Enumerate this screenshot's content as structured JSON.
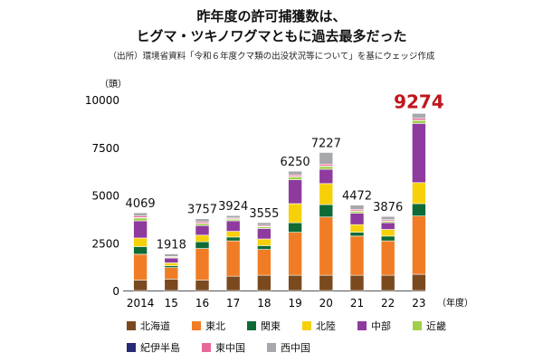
{
  "title_line1": "昨年度の許可捕獲数は、",
  "title_line2": "ヒグマ・ツキノワグマともに過去最多だった",
  "source": "（出所）環境省資料「令和６年度クマ類の出没状況等について」を基にウェッジ作成",
  "chart_data": {
    "type": "bar",
    "stacked": true,
    "title": "昨年度の許可捕獲数は、ヒグマ・ツキノワグマともに過去最多だった",
    "ylabel": "（頭）",
    "xlabel": "（年度）",
    "ylim": [
      0,
      10000
    ],
    "yticks": [
      "0",
      "2500",
      "5000",
      "7500",
      "10000"
    ],
    "categories": [
      "2014",
      "15",
      "16",
      "17",
      "18",
      "19",
      "20",
      "21",
      "22",
      "23"
    ],
    "totals": [
      4069,
      1918,
      3757,
      3924,
      3555,
      6250,
      7227,
      4472,
      3876,
      9274
    ],
    "total_labels": [
      "4069",
      "1918",
      "3757",
      "3924",
      "3555",
      "6250",
      "7227",
      "4472",
      "3876",
      "9274"
    ],
    "highlight_index": 9,
    "highlight_color": "#c0161e",
    "series": [
      {
        "name": "北海道",
        "color": "#7a4a1e",
        "values": [
          550,
          600,
          550,
          750,
          800,
          800,
          800,
          800,
          800,
          850
        ]
      },
      {
        "name": "東北",
        "color": "#f07d25",
        "values": [
          1350,
          600,
          1650,
          1850,
          1350,
          2250,
          3050,
          2050,
          1800,
          3050
        ]
      },
      {
        "name": "関東",
        "color": "#0f6b35",
        "values": [
          400,
          100,
          350,
          200,
          200,
          500,
          650,
          200,
          250,
          650
        ]
      },
      {
        "name": "北陸",
        "color": "#f6d10a",
        "values": [
          450,
          150,
          350,
          300,
          350,
          1000,
          1100,
          400,
          350,
          1100
        ]
      },
      {
        "name": "中部",
        "color": "#8e3a9f",
        "values": [
          900,
          250,
          500,
          550,
          550,
          1250,
          750,
          600,
          350,
          3100
        ]
      },
      {
        "name": "近畿",
        "color": "#9fd048",
        "values": [
          150,
          40,
          100,
          80,
          80,
          150,
          150,
          100,
          80,
          150
        ]
      },
      {
        "name": "紀伊半島",
        "color": "#282a74",
        "values": [
          20,
          10,
          20,
          20,
          20,
          20,
          20,
          20,
          20,
          20
        ]
      },
      {
        "name": "東中国",
        "color": "#e9689a",
        "values": [
          80,
          30,
          80,
          50,
          60,
          80,
          100,
          80,
          60,
          100
        ]
      },
      {
        "name": "西中国",
        "color": "#a7a8ab",
        "values": [
          169,
          138,
          157,
          124,
          145,
          200,
          607,
          222,
          166,
          254
        ]
      }
    ]
  }
}
